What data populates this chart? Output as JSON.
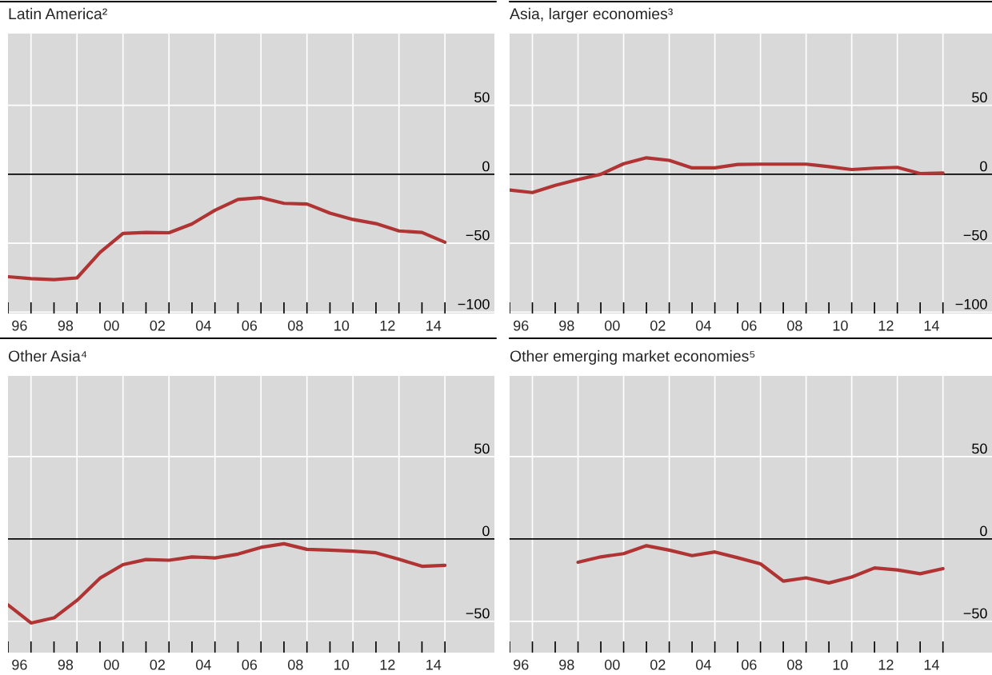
{
  "chart_data": [
    {
      "type": "line",
      "title": "Latin America²",
      "x": [
        1995.5,
        1996.5,
        1997.5,
        1998.5,
        1999.5,
        2000.5,
        2001.5,
        2002.5,
        2003.5,
        2004.5,
        2005.5,
        2006.5,
        2007.5,
        2008.5,
        2009.5,
        2010.5,
        2011.5,
        2012.5,
        2013.5,
        2014.5
      ],
      "series": [
        {
          "color": "#b03434",
          "values": [
            -74.3,
            -75.7,
            -76.4,
            -75.2,
            -56.7,
            -42.9,
            -42.2,
            -42.4,
            -36.0,
            -26.1,
            -18.3,
            -17.0,
            -21.1,
            -21.6,
            -28.2,
            -32.8,
            -35.8,
            -41.1,
            -42.2,
            -49.3
          ]
        }
      ],
      "xlim": [
        1995.5,
        2016.65
      ],
      "ylim": [
        -101,
        102
      ],
      "yticks": [
        -100,
        -50,
        0,
        50
      ],
      "xticks": [
        {
          "value": 1995.5,
          "label": null
        },
        {
          "value": 1996,
          "label": "96"
        },
        {
          "value": 1996.5,
          "label": null
        },
        {
          "value": 1997.5,
          "label": null
        },
        {
          "value": 1998,
          "label": "98"
        },
        {
          "value": 1998.5,
          "label": null
        },
        {
          "value": 1999.5,
          "label": null
        },
        {
          "value": 2000,
          "label": "00"
        },
        {
          "value": 2000.5,
          "label": null
        },
        {
          "value": 2001.5,
          "label": null
        },
        {
          "value": 2002,
          "label": "02"
        },
        {
          "value": 2002.5,
          "label": null
        },
        {
          "value": 2003.5,
          "label": null
        },
        {
          "value": 2004,
          "label": "04"
        },
        {
          "value": 2004.5,
          "label": null
        },
        {
          "value": 2005.5,
          "label": null
        },
        {
          "value": 2006,
          "label": "06"
        },
        {
          "value": 2006.5,
          "label": null
        },
        {
          "value": 2007.5,
          "label": null
        },
        {
          "value": 2008,
          "label": "08"
        },
        {
          "value": 2008.5,
          "label": null
        },
        {
          "value": 2009.5,
          "label": null
        },
        {
          "value": 2010,
          "label": "10"
        },
        {
          "value": 2010.5,
          "label": null
        },
        {
          "value": 2011.5,
          "label": null
        },
        {
          "value": 2012,
          "label": "12"
        },
        {
          "value": 2012.5,
          "label": null
        },
        {
          "value": 2013.5,
          "label": null
        },
        {
          "value": 2014,
          "label": "14"
        },
        {
          "value": 2014.5,
          "label": null
        }
      ],
      "ref_lines": [
        {
          "axis": "y",
          "value": 0,
          "color": "#000000"
        }
      ],
      "grid": true
    },
    {
      "type": "line",
      "title": "Asia, larger economies³",
      "x": [
        1995.5,
        1996.5,
        1997.5,
        1998.5,
        1999.5,
        2000.5,
        2001.5,
        2002.5,
        2003.5,
        2004.5,
        2005.5,
        2006.5,
        2007.5,
        2008.5,
        2009.5,
        2010.5,
        2011.5,
        2012.5,
        2013.5,
        2014.5
      ],
      "series": [
        {
          "color": "#b03434",
          "values": [
            -11.5,
            -13.3,
            -8.0,
            -3.9,
            0,
            7.6,
            11.9,
            10.1,
            4.6,
            4.6,
            7.1,
            7.3,
            7.3,
            7.3,
            5.5,
            3.4,
            4.4,
            5.0,
            0.5,
            0.9
          ]
        }
      ],
      "xlim": [
        1995.5,
        2016.65
      ],
      "ylim": [
        -101,
        102
      ],
      "yticks": [
        -100,
        -50,
        0,
        50
      ],
      "xticks": [
        {
          "value": 1995.5,
          "label": null
        },
        {
          "value": 1996,
          "label": "96"
        },
        {
          "value": 1996.5,
          "label": null
        },
        {
          "value": 1997.5,
          "label": null
        },
        {
          "value": 1998,
          "label": "98"
        },
        {
          "value": 1998.5,
          "label": null
        },
        {
          "value": 1999.5,
          "label": null
        },
        {
          "value": 2000,
          "label": "00"
        },
        {
          "value": 2000.5,
          "label": null
        },
        {
          "value": 2001.5,
          "label": null
        },
        {
          "value": 2002,
          "label": "02"
        },
        {
          "value": 2002.5,
          "label": null
        },
        {
          "value": 2003.5,
          "label": null
        },
        {
          "value": 2004,
          "label": "04"
        },
        {
          "value": 2004.5,
          "label": null
        },
        {
          "value": 2005.5,
          "label": null
        },
        {
          "value": 2006,
          "label": "06"
        },
        {
          "value": 2006.5,
          "label": null
        },
        {
          "value": 2007.5,
          "label": null
        },
        {
          "value": 2008,
          "label": "08"
        },
        {
          "value": 2008.5,
          "label": null
        },
        {
          "value": 2009.5,
          "label": null
        },
        {
          "value": 2010,
          "label": "10"
        },
        {
          "value": 2010.5,
          "label": null
        },
        {
          "value": 2011.5,
          "label": null
        },
        {
          "value": 2012,
          "label": "12"
        },
        {
          "value": 2012.5,
          "label": null
        },
        {
          "value": 2013.5,
          "label": null
        },
        {
          "value": 2014,
          "label": "14"
        },
        {
          "value": 2014.5,
          "label": null
        }
      ],
      "ref_lines": [
        {
          "axis": "y",
          "value": 0,
          "color": "#000000"
        }
      ],
      "grid": true
    },
    {
      "type": "line",
      "title": "Other Asia⁴",
      "x": [
        1995.5,
        1996.5,
        1997.5,
        1998.5,
        1999.5,
        2000.5,
        2001.5,
        2002.5,
        2003.5,
        2004.5,
        2005.5,
        2006.5,
        2007.5,
        2008.5,
        2009.5,
        2010.5,
        2011.5,
        2012.5,
        2013.5,
        2014.5
      ],
      "series": [
        {
          "color": "#b03434",
          "values": [
            -40.0,
            -51.0,
            -47.9,
            -37.3,
            -23.8,
            -15.6,
            -12.5,
            -12.9,
            -10.9,
            -11.5,
            -9.2,
            -5.1,
            -2.9,
            -6.3,
            -6.8,
            -7.4,
            -8.4,
            -12.3,
            -16.6,
            -16.0
          ]
        }
      ],
      "xlim": [
        1995.5,
        2016.65
      ],
      "ylim": [
        -69,
        99
      ],
      "yticks": [
        -50,
        0,
        50
      ],
      "xticks": [
        {
          "value": 1995.5,
          "label": null
        },
        {
          "value": 1996,
          "label": "96"
        },
        {
          "value": 1996.5,
          "label": null
        },
        {
          "value": 1997.5,
          "label": null
        },
        {
          "value": 1998,
          "label": "98"
        },
        {
          "value": 1998.5,
          "label": null
        },
        {
          "value": 1999.5,
          "label": null
        },
        {
          "value": 2000,
          "label": "00"
        },
        {
          "value": 2000.5,
          "label": null
        },
        {
          "value": 2001.5,
          "label": null
        },
        {
          "value": 2002,
          "label": "02"
        },
        {
          "value": 2002.5,
          "label": null
        },
        {
          "value": 2003.5,
          "label": null
        },
        {
          "value": 2004,
          "label": "04"
        },
        {
          "value": 2004.5,
          "label": null
        },
        {
          "value": 2005.5,
          "label": null
        },
        {
          "value": 2006,
          "label": "06"
        },
        {
          "value": 2006.5,
          "label": null
        },
        {
          "value": 2007.5,
          "label": null
        },
        {
          "value": 2008,
          "label": "08"
        },
        {
          "value": 2008.5,
          "label": null
        },
        {
          "value": 2009.5,
          "label": null
        },
        {
          "value": 2010,
          "label": "10"
        },
        {
          "value": 2010.5,
          "label": null
        },
        {
          "value": 2011.5,
          "label": null
        },
        {
          "value": 2012,
          "label": "12"
        },
        {
          "value": 2012.5,
          "label": null
        },
        {
          "value": 2013.5,
          "label": null
        },
        {
          "value": 2014,
          "label": "14"
        },
        {
          "value": 2014.5,
          "label": null
        }
      ],
      "ref_lines": [
        {
          "axis": "y",
          "value": 0,
          "color": "#000000"
        }
      ],
      "grid": true
    },
    {
      "type": "line",
      "title": "Other emerging market economies⁵",
      "x": [
        1998.5,
        1999.5,
        2000.5,
        2001.5,
        2002.5,
        2003.5,
        2004.5,
        2005.5,
        2006.5,
        2007.5,
        2008.5,
        2009.5,
        2010.5,
        2011.5,
        2012.5,
        2013.5,
        2014.5
      ],
      "series": [
        {
          "color": "#b03434",
          "values": [
            -14.1,
            -10.9,
            -8.9,
            -4.1,
            -6.8,
            -10.1,
            -7.9,
            -11.4,
            -15.1,
            -25.6,
            -23.6,
            -26.7,
            -23.1,
            -17.6,
            -18.8,
            -21.1,
            -18.0
          ]
        }
      ],
      "xlim": [
        1995.5,
        2016.65
      ],
      "ylim": [
        -69,
        99
      ],
      "yticks": [
        -50,
        0,
        50
      ],
      "xticks": [
        {
          "value": 1995.5,
          "label": null
        },
        {
          "value": 1996,
          "label": "96"
        },
        {
          "value": 1996.5,
          "label": null
        },
        {
          "value": 1997.5,
          "label": null
        },
        {
          "value": 1998,
          "label": "98"
        },
        {
          "value": 1998.5,
          "label": null
        },
        {
          "value": 1999.5,
          "label": null
        },
        {
          "value": 2000,
          "label": "00"
        },
        {
          "value": 2000.5,
          "label": null
        },
        {
          "value": 2001.5,
          "label": null
        },
        {
          "value": 2002,
          "label": "02"
        },
        {
          "value": 2002.5,
          "label": null
        },
        {
          "value": 2003.5,
          "label": null
        },
        {
          "value": 2004,
          "label": "04"
        },
        {
          "value": 2004.5,
          "label": null
        },
        {
          "value": 2005.5,
          "label": null
        },
        {
          "value": 2006,
          "label": "06"
        },
        {
          "value": 2006.5,
          "label": null
        },
        {
          "value": 2007.5,
          "label": null
        },
        {
          "value": 2008,
          "label": "08"
        },
        {
          "value": 2008.5,
          "label": null
        },
        {
          "value": 2009.5,
          "label": null
        },
        {
          "value": 2010,
          "label": "10"
        },
        {
          "value": 2010.5,
          "label": null
        },
        {
          "value": 2011.5,
          "label": null
        },
        {
          "value": 2012,
          "label": "12"
        },
        {
          "value": 2012.5,
          "label": null
        },
        {
          "value": 2013.5,
          "label": null
        },
        {
          "value": 2014,
          "label": "14"
        },
        {
          "value": 2014.5,
          "label": null
        }
      ],
      "ref_lines": [
        {
          "axis": "y",
          "value": 0,
          "color": "#000000"
        }
      ],
      "grid": true
    }
  ]
}
